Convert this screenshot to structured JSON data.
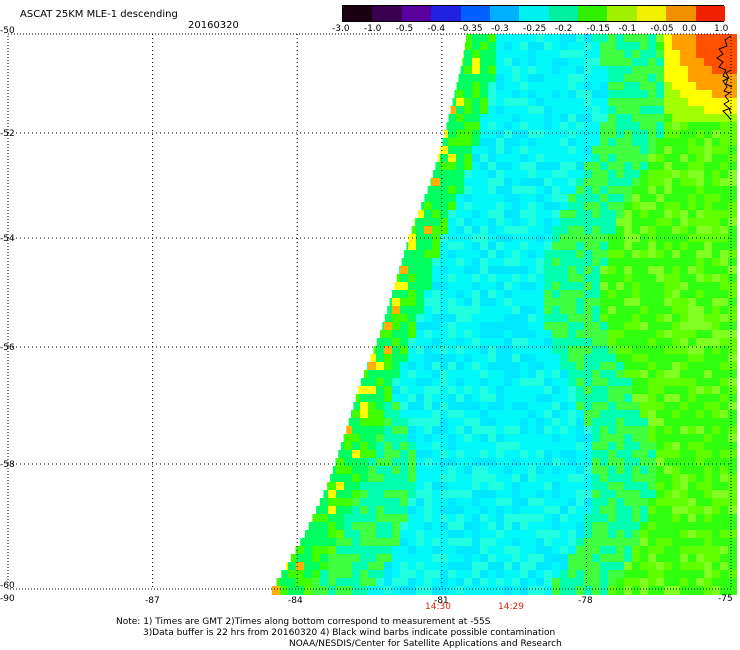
{
  "header": {
    "title": "ASCAT 25KM MLE-1 descending",
    "date": "20160320"
  },
  "colorbar": {
    "labels": [
      "-3.0",
      "-1.0",
      "-0.5",
      "-0.4",
      "-0.35",
      "-0.3",
      "-0.25",
      "-0.2",
      "-0.15",
      "-0.1",
      "-0.05",
      "0.0",
      "1.0"
    ],
    "colors": [
      "#1a0010",
      "#3a0050",
      "#5a00a0",
      "#2020e0",
      "#0060ff",
      "#00b0ff",
      "#00f0f0",
      "#00f0a0",
      "#30f000",
      "#a0f000",
      "#f0f000",
      "#f09000",
      "#f02000"
    ]
  },
  "map": {
    "lat_labels": [
      "-50",
      "-52",
      "-54",
      "-56",
      "-58",
      "-60"
    ],
    "lon_labels": [
      "-90",
      "-87",
      "-84",
      "-81",
      "-78",
      "-75"
    ],
    "lat_range": [
      -60,
      -50
    ],
    "lon_range": [
      -90,
      -75
    ],
    "grid": true,
    "swath_times": [
      {
        "text": "14:30",
        "color": "#e02010"
      },
      {
        "text": "14:29",
        "color": "#e02010"
      }
    ]
  },
  "notes": {
    "line1": "Note: 1) Times are GMT 2)Times along bottom correspond to measurement at -55S",
    "line2": "3)Data buffer is 22 hrs from 20160320 4) Black wind barbs indicate possible contamination",
    "line3": "NOAA/NESDIS/Center for Satellite Applications and Research"
  }
}
